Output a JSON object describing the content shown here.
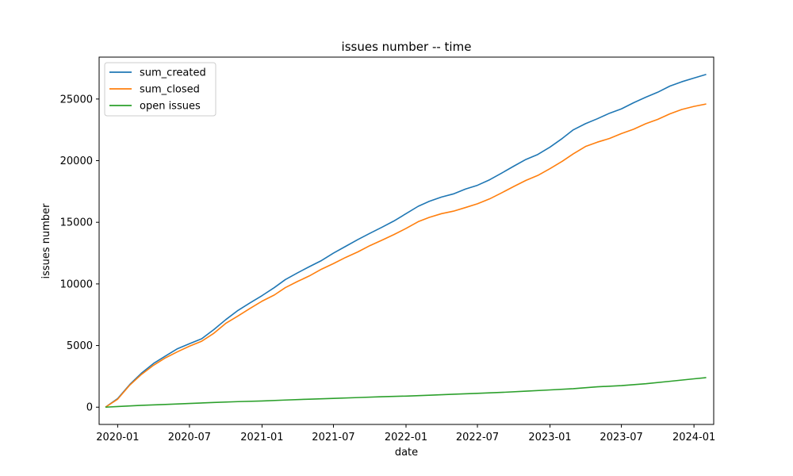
{
  "chart_data": {
    "type": "line",
    "title": "issues number -- time",
    "xlabel": "date",
    "ylabel": "issues number",
    "xlim": [
      "2019-11-15",
      "2024-02-20"
    ],
    "ylim": [
      -1400,
      28400
    ],
    "x_ticks": [
      "2020-01",
      "2020-07",
      "2021-01",
      "2021-07",
      "2022-01",
      "2022-07",
      "2023-01",
      "2023-07",
      "2024-01"
    ],
    "y_ticks": [
      0,
      5000,
      10000,
      15000,
      20000,
      25000
    ],
    "grid": false,
    "legend_position": "upper-left",
    "series": [
      {
        "name": "sum_created",
        "color": "#1f77b4",
        "x": [
          "2019-12-01",
          "2020-01-01",
          "2020-02-01",
          "2020-03-01",
          "2020-04-01",
          "2020-05-01",
          "2020-06-01",
          "2020-07-01",
          "2020-08-01",
          "2020-09-01",
          "2020-10-01",
          "2020-11-01",
          "2020-12-01",
          "2021-01-01",
          "2021-02-01",
          "2021-03-01",
          "2021-04-01",
          "2021-05-01",
          "2021-06-01",
          "2021-07-01",
          "2021-08-01",
          "2021-09-01",
          "2021-10-01",
          "2021-11-01",
          "2021-12-01",
          "2022-01-01",
          "2022-02-01",
          "2022-03-01",
          "2022-04-01",
          "2022-05-01",
          "2022-06-01",
          "2022-07-01",
          "2022-08-01",
          "2022-09-01",
          "2022-10-01",
          "2022-11-01",
          "2022-12-01",
          "2023-01-01",
          "2023-02-01",
          "2023-03-01",
          "2023-04-01",
          "2023-05-01",
          "2023-06-01",
          "2023-07-01",
          "2023-08-01",
          "2023-09-01",
          "2023-10-01",
          "2023-11-01",
          "2023-12-01",
          "2024-01-01",
          "2024-02-01"
        ],
        "values": [
          0,
          700,
          1850,
          2750,
          3550,
          4150,
          4750,
          5150,
          5550,
          6300,
          7100,
          7850,
          8450,
          9050,
          9700,
          10350,
          10900,
          11400,
          11900,
          12500,
          13050,
          13600,
          14100,
          14600,
          15100,
          15700,
          16300,
          16700,
          17050,
          17300,
          17700,
          18000,
          18450,
          19000,
          19550,
          20100,
          20500,
          21100,
          21800,
          22500,
          23000,
          23400,
          23850,
          24200,
          24700,
          25150,
          25550,
          26050,
          26400,
          26700,
          27000
        ]
      },
      {
        "name": "sum_closed",
        "color": "#ff7f0e",
        "x": [
          "2019-12-01",
          "2020-01-01",
          "2020-02-01",
          "2020-03-01",
          "2020-04-01",
          "2020-05-01",
          "2020-06-01",
          "2020-07-01",
          "2020-08-01",
          "2020-09-01",
          "2020-10-01",
          "2020-11-01",
          "2020-12-01",
          "2021-01-01",
          "2021-02-01",
          "2021-03-01",
          "2021-04-01",
          "2021-05-01",
          "2021-06-01",
          "2021-07-01",
          "2021-08-01",
          "2021-09-01",
          "2021-10-01",
          "2021-11-01",
          "2021-12-01",
          "2022-01-01",
          "2022-02-01",
          "2022-03-01",
          "2022-04-01",
          "2022-05-01",
          "2022-06-01",
          "2022-07-01",
          "2022-08-01",
          "2022-09-01",
          "2022-10-01",
          "2022-11-01",
          "2022-12-01",
          "2023-01-01",
          "2023-02-01",
          "2023-03-01",
          "2023-04-01",
          "2023-05-01",
          "2023-06-01",
          "2023-07-01",
          "2023-08-01",
          "2023-09-01",
          "2023-10-01",
          "2023-11-01",
          "2023-12-01",
          "2024-01-01",
          "2024-02-01"
        ],
        "values": [
          0,
          650,
          1800,
          2650,
          3400,
          4000,
          4500,
          4950,
          5350,
          6000,
          6800,
          7400,
          8000,
          8600,
          9100,
          9700,
          10200,
          10650,
          11200,
          11650,
          12150,
          12600,
          13100,
          13550,
          14000,
          14500,
          15050,
          15400,
          15700,
          15900,
          16200,
          16500,
          16900,
          17400,
          17900,
          18400,
          18800,
          19350,
          19950,
          20550,
          21150,
          21500,
          21800,
          22200,
          22550,
          23000,
          23350,
          23800,
          24150,
          24400,
          24600
        ]
      },
      {
        "name": "open issues",
        "color": "#2ca02c",
        "x": [
          "2019-12-01",
          "2020-01-01",
          "2020-03-01",
          "2020-05-01",
          "2020-07-01",
          "2020-09-01",
          "2020-11-01",
          "2021-01-01",
          "2021-03-01",
          "2021-05-01",
          "2021-07-01",
          "2021-09-01",
          "2021-11-01",
          "2022-01-01",
          "2022-03-01",
          "2022-05-01",
          "2022-07-01",
          "2022-09-01",
          "2022-11-01",
          "2023-01-01",
          "2023-03-01",
          "2023-05-01",
          "2023-07-01",
          "2023-09-01",
          "2023-11-01",
          "2024-01-01",
          "2024-02-01"
        ],
        "values": [
          0,
          50,
          150,
          220,
          300,
          380,
          450,
          500,
          580,
          650,
          710,
          780,
          850,
          900,
          970,
          1050,
          1120,
          1200,
          1300,
          1400,
          1500,
          1650,
          1750,
          1900,
          2100,
          2300,
          2400
        ]
      }
    ]
  }
}
